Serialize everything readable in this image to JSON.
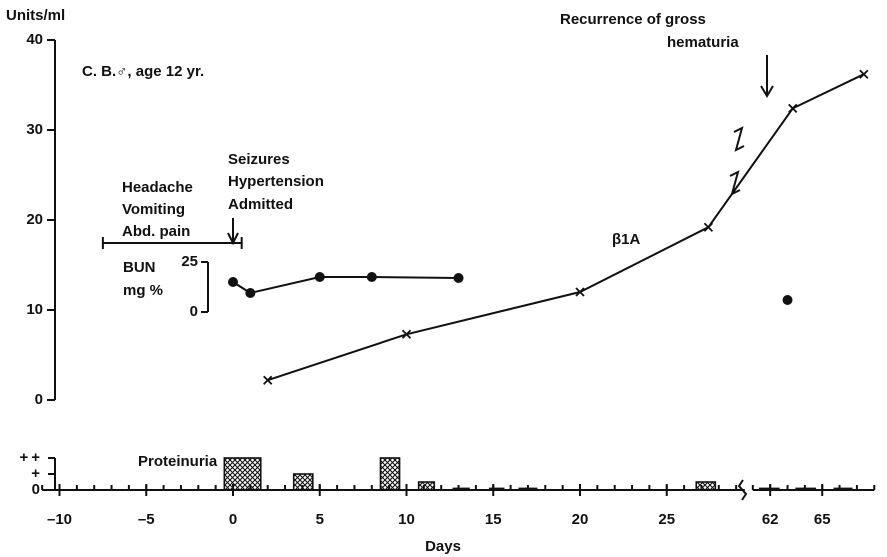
{
  "chart_data": [
    {
      "type": "line",
      "ylabel": "Units/ml",
      "ylim": [
        0,
        40
      ],
      "yticks": [
        0,
        10,
        20,
        30,
        40
      ],
      "y2label": "mg %",
      "y2lim": [
        0,
        25
      ],
      "y2ticks": [
        0,
        25
      ],
      "annotations": [
        "C. B.♂, age 12 yr.",
        "Recurrence of gross",
        "hematuria",
        "Seizures",
        "Hypertension",
        "Admitted",
        "Headache",
        "Vomiting",
        "Abd. pain"
      ],
      "symptom_span": [
        -7.5,
        0.5
      ],
      "series": [
        {
          "name": "β1A",
          "color": "#111111",
          "marker": "x",
          "x": [
            2,
            10,
            20,
            27.4,
            63.3,
            67.4
          ],
          "values": [
            2.2,
            7.3,
            12,
            19.2,
            32.4,
            36.2
          ]
        },
        {
          "name": "BUN",
          "color": "#111111",
          "marker": "dot",
          "axis": "y2",
          "x": [
            0,
            1,
            5,
            8,
            13,
            null,
            63
          ],
          "values": [
            15,
            9.5,
            17.5,
            17.5,
            17,
            null,
            6
          ]
        }
      ]
    },
    {
      "type": "bar",
      "title": "Proteinuria",
      "xlabel": "Days",
      "xlim": [
        -11,
        68
      ],
      "xbreak": [
        29.5,
        61
      ],
      "xminor": 1,
      "xticks": [
        {
          "value": -10,
          "label": "–10"
        },
        {
          "value": -5,
          "label": "–5"
        },
        0,
        5,
        10,
        15,
        20,
        25,
        62,
        65
      ],
      "ylim": [
        0,
        2
      ],
      "yticks": [
        0,
        {
          "value": 1,
          "label": "+"
        },
        {
          "value": 2,
          "label": "++"
        }
      ],
      "color": "#111111",
      "hatch": true,
      "x_start": [
        -0.5,
        3.5,
        8.5,
        10.7,
        12.7,
        14.8,
        16.5,
        26.7,
        61.4,
        63.5,
        65.7
      ],
      "x_end": [
        1.6,
        4.6,
        9.6,
        11.6,
        13.6,
        15.6,
        17.5,
        27.8,
        62.5,
        64.6,
        66.7
      ],
      "values": [
        2,
        1,
        2,
        0.5,
        0.1,
        0.1,
        0.1,
        0.5,
        0.1,
        0.1,
        0.1
      ]
    }
  ]
}
